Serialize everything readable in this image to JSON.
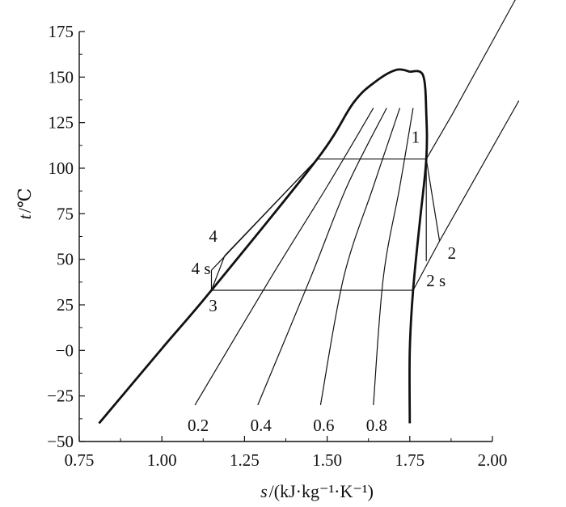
{
  "chart_data": {
    "type": "line",
    "title": "",
    "xlabel_var": "s",
    "xlabel_unit": "/(kJ·kg⁻¹·K⁻¹)",
    "ylabel_var": "t",
    "ylabel_unit": "/℃",
    "xlim": [
      0.75,
      2.0
    ],
    "ylim": [
      -50,
      175
    ],
    "x_ticks": [
      "0.75",
      "1.00",
      "1.25",
      "1.50",
      "1.75",
      "2.00"
    ],
    "y_ticks": [
      "175",
      "150",
      "125",
      "100",
      "75",
      "50",
      "25",
      "−0",
      "−25",
      "−50"
    ],
    "grid": false,
    "saturation_dome": {
      "liquid_line": [
        [
          0.81,
          -40
        ],
        [
          1.0,
          1
        ],
        [
          1.15,
          33
        ],
        [
          1.47,
          105
        ],
        [
          1.58,
          136
        ],
        [
          1.65,
          148
        ],
        [
          1.71,
          154
        ],
        [
          1.75,
          153
        ]
      ],
      "vapor_line": [
        [
          1.75,
          153
        ],
        [
          1.79,
          151
        ],
        [
          1.8,
          130
        ],
        [
          1.8,
          105
        ],
        [
          1.78,
          70
        ],
        [
          1.76,
          33
        ],
        [
          1.75,
          0
        ],
        [
          1.75,
          -40
        ]
      ]
    },
    "quality_lines": [
      {
        "label": "0.2",
        "points": [
          [
            1.1,
            -30
          ],
          [
            1.33,
            40
          ],
          [
            1.5,
            90
          ],
          [
            1.64,
            133
          ]
        ]
      },
      {
        "label": "0.4",
        "points": [
          [
            1.29,
            -30
          ],
          [
            1.45,
            40
          ],
          [
            1.56,
            90
          ],
          [
            1.68,
            133
          ]
        ]
      },
      {
        "label": "0.6",
        "points": [
          [
            1.48,
            -30
          ],
          [
            1.55,
            40
          ],
          [
            1.64,
            90
          ],
          [
            1.72,
            133
          ]
        ]
      },
      {
        "label": "0.8",
        "points": [
          [
            1.64,
            -30
          ],
          [
            1.67,
            40
          ],
          [
            1.72,
            90
          ],
          [
            1.76,
            133
          ]
        ]
      }
    ],
    "isobars": [
      {
        "points": [
          [
            1.8,
            105
          ],
          [
            1.88,
            130
          ],
          [
            2.08,
            196
          ]
        ]
      },
      {
        "points": [
          [
            1.76,
            33
          ],
          [
            1.84,
            60
          ],
          [
            2.08,
            137
          ]
        ]
      }
    ],
    "cycle": {
      "points": [
        {
          "label": "1",
          "s": 1.8,
          "t": 105
        },
        {
          "label": "2",
          "s": 1.84,
          "t": 60
        },
        {
          "label": "2 s",
          "s": 1.8,
          "t": 49
        },
        {
          "label": "3",
          "s": 1.15,
          "t": 33
        },
        {
          "label": "4",
          "s": 1.19,
          "t": 52
        },
        {
          "label": "4 s",
          "s": 1.15,
          "t": 44
        }
      ],
      "segments": [
        [
          [
            1.15,
            33
          ],
          [
            1.76,
            33
          ]
        ],
        [
          [
            1.47,
            105
          ],
          [
            1.8,
            105
          ]
        ],
        [
          [
            1.8,
            105
          ],
          [
            1.84,
            60
          ]
        ],
        [
          [
            1.8,
            105
          ],
          [
            1.8,
            49
          ]
        ],
        [
          [
            1.15,
            33
          ],
          [
            1.15,
            44
          ]
        ],
        [
          [
            1.15,
            33
          ],
          [
            1.19,
            52
          ]
        ],
        [
          [
            1.15,
            44
          ],
          [
            1.47,
            105
          ]
        ],
        [
          [
            1.19,
            52
          ],
          [
            1.47,
            105
          ]
        ]
      ]
    }
  }
}
